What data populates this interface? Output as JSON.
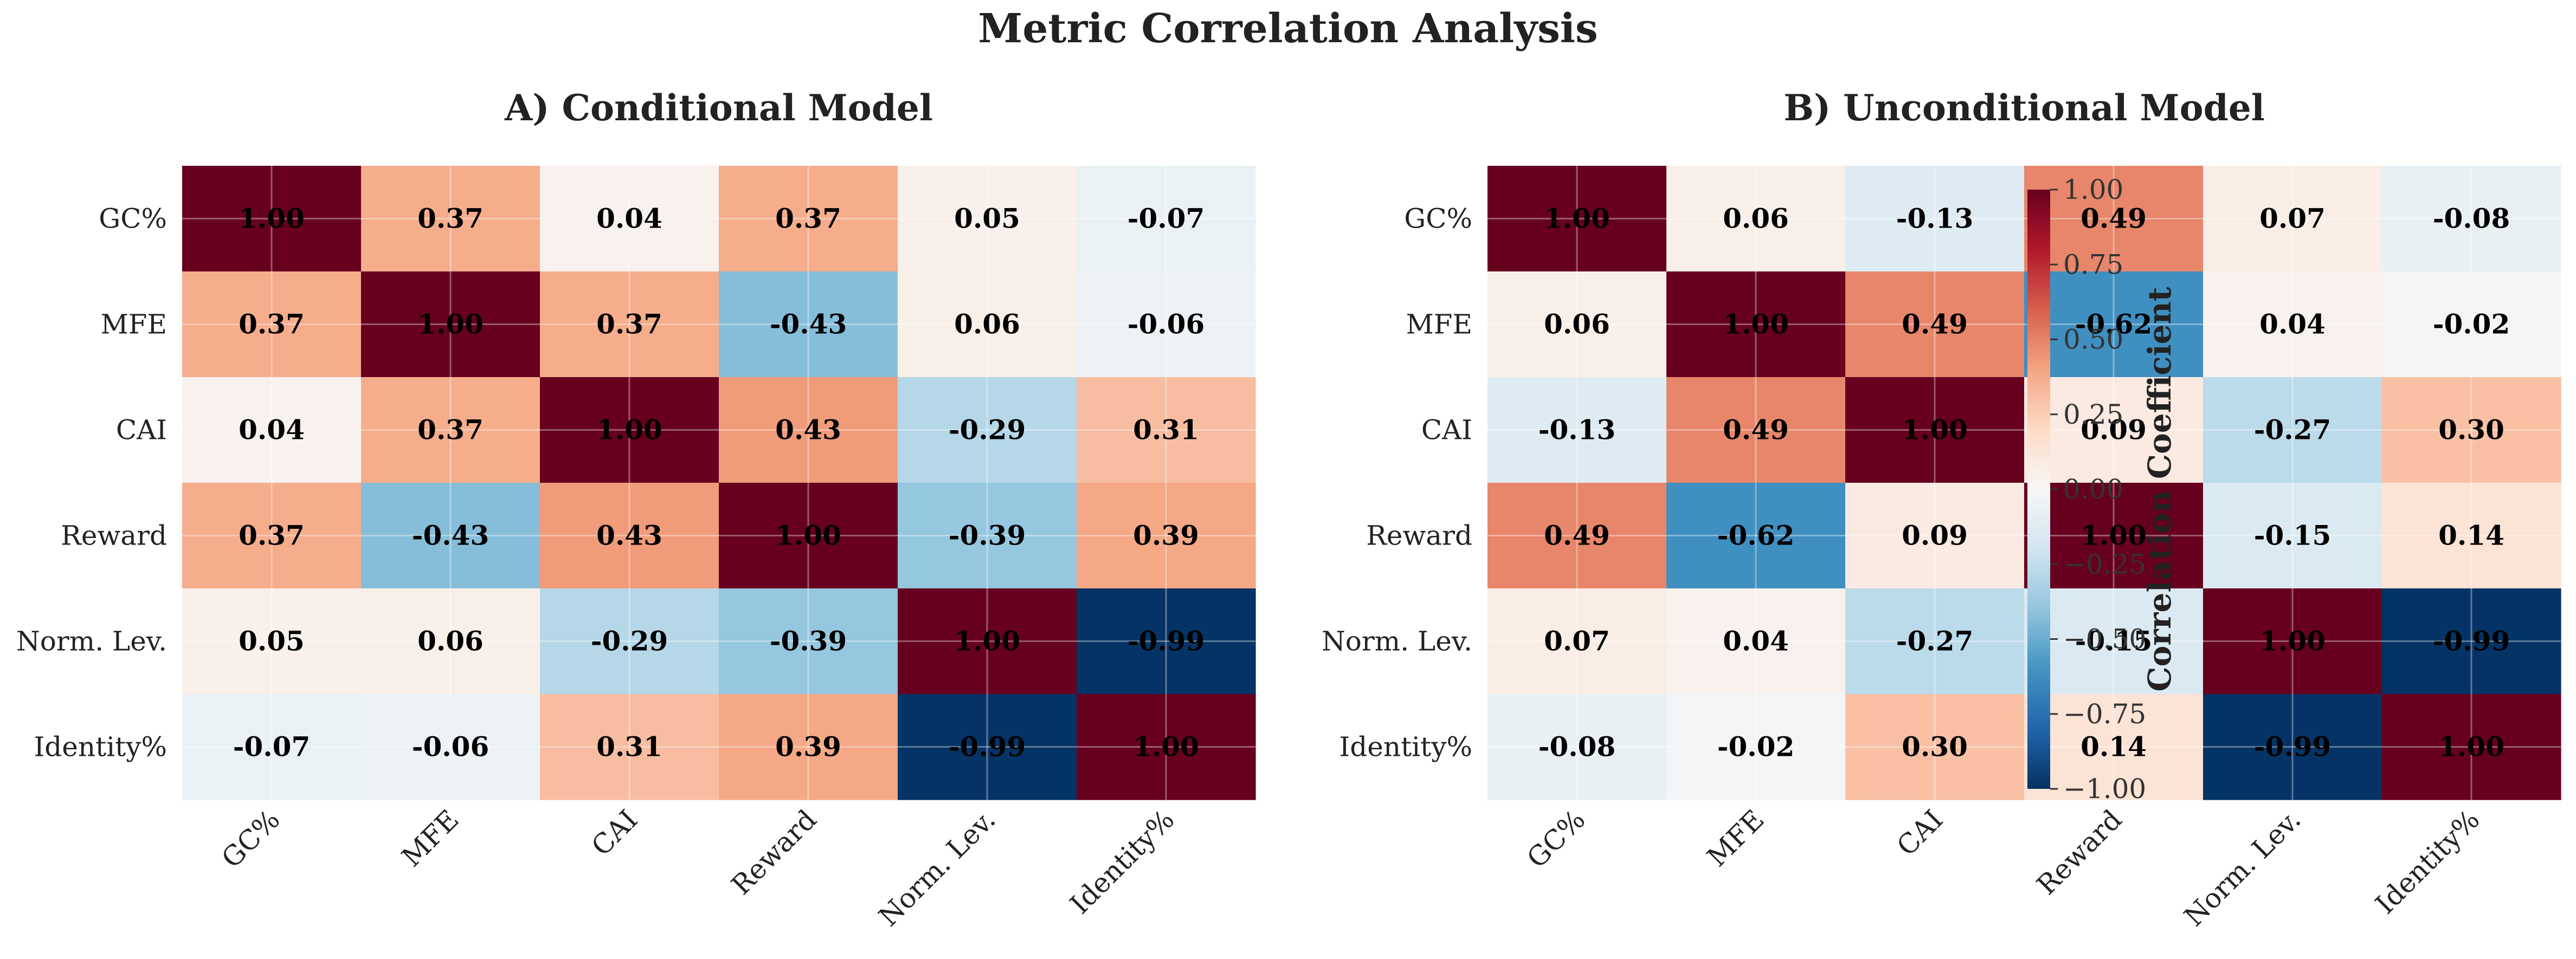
{
  "figure": {
    "title": "Metric Correlation Analysis"
  },
  "chart_data": [
    {
      "type": "heatmap",
      "title": "A) Conditional Model",
      "x_labels": [
        "GC%",
        "MFE",
        "CAI",
        "Reward",
        "Norm. Lev.",
        "Identity%"
      ],
      "y_labels": [
        "GC%",
        "MFE",
        "CAI",
        "Reward",
        "Norm. Lev.",
        "Identity%"
      ],
      "values": [
        [
          1.0,
          0.37,
          0.04,
          0.37,
          0.05,
          -0.07
        ],
        [
          0.37,
          1.0,
          0.37,
          -0.43,
          0.06,
          -0.06
        ],
        [
          0.04,
          0.37,
          1.0,
          0.43,
          -0.29,
          0.31
        ],
        [
          0.37,
          -0.43,
          0.43,
          1.0,
          -0.39,
          0.39
        ],
        [
          0.05,
          0.06,
          -0.29,
          -0.39,
          1.0,
          -0.99
        ],
        [
          -0.07,
          -0.06,
          0.31,
          0.39,
          -0.99,
          1.0
        ]
      ],
      "zlim": [
        -1,
        1
      ],
      "colormap": "RdBu_r",
      "grid": true
    },
    {
      "type": "heatmap",
      "title": "B) Unconditional Model",
      "x_labels": [
        "GC%",
        "MFE",
        "CAI",
        "Reward",
        "Norm. Lev.",
        "Identity%"
      ],
      "y_labels": [
        "GC%",
        "MFE",
        "CAI",
        "Reward",
        "Norm. Lev.",
        "Identity%"
      ],
      "values": [
        [
          1.0,
          0.06,
          -0.13,
          0.49,
          0.07,
          -0.08
        ],
        [
          0.06,
          1.0,
          0.49,
          -0.62,
          0.04,
          -0.02
        ],
        [
          -0.13,
          0.49,
          1.0,
          0.09,
          -0.27,
          0.3
        ],
        [
          0.49,
          -0.62,
          0.09,
          1.0,
          -0.15,
          0.14
        ],
        [
          0.07,
          0.04,
          -0.27,
          -0.15,
          1.0,
          -0.99
        ],
        [
          -0.08,
          -0.02,
          0.3,
          0.14,
          -0.99,
          1.0
        ]
      ],
      "zlim": [
        -1,
        1
      ],
      "colormap": "RdBu_r",
      "grid": true
    }
  ],
  "colorbar": {
    "label": "Correlation Coefficient",
    "ticks": [
      1.0,
      0.75,
      0.5,
      0.25,
      0.0,
      -0.25,
      -0.5,
      -0.75,
      -1.0
    ],
    "tick_labels": [
      "1.00",
      "0.75",
      "0.50",
      "0.25",
      "0.00",
      "−0.25",
      "−0.50",
      "−0.75",
      "−1.00"
    ]
  }
}
